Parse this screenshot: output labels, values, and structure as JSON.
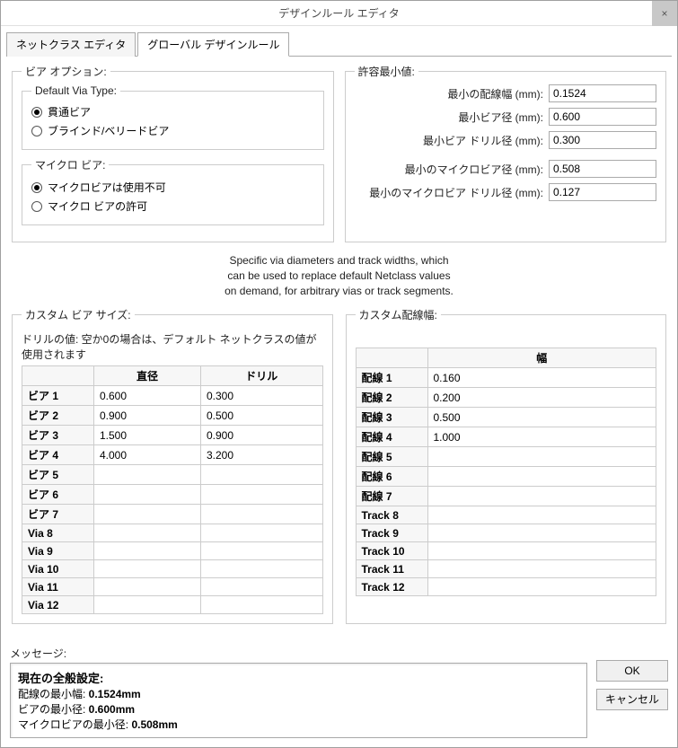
{
  "window": {
    "title": "デザインルール エディタ",
    "close": "×"
  },
  "tabs": {
    "t1": "ネットクラス エディタ",
    "t2": "グローバル デザインルール"
  },
  "viaOpt": {
    "legend": "ビア オプション:",
    "defaultType": {
      "legend": "Default Via Type:",
      "r1": "貫通ビア",
      "r2": "ブラインド/ベリードビア"
    },
    "micro": {
      "legend": "マイクロ ビア:",
      "r1": "マイクロビアは使用不可",
      "r2": "マイクロ ビアの許可"
    }
  },
  "minVals": {
    "legend": "許容最小値:",
    "rows": [
      {
        "label": "最小の配線幅 (mm):",
        "val": "0.1524"
      },
      {
        "label": "最小ビア径 (mm):",
        "val": "0.600"
      },
      {
        "label": "最小ビア ドリル径 (mm):",
        "val": "0.300"
      },
      {
        "label": "最小のマイクロビア径 (mm):",
        "val": "0.508"
      },
      {
        "label": "最小のマイクロビア ドリル径 (mm):",
        "val": "0.127"
      }
    ]
  },
  "info": {
    "l1": "Specific via diameters and track widths, which",
    "l2": "can be used to replace default Netclass values",
    "l3": "on demand, for arbitrary vias or track segments."
  },
  "viaTable": {
    "legend": "カスタム ビア サイズ:",
    "hint": "ドリルの値: 空か0の場合は、デフォルト ネットクラスの値が使用されます",
    "col1": "直径",
    "col2": "ドリル",
    "rows": [
      {
        "h": "ビア 1",
        "d": "0.600",
        "r": "0.300"
      },
      {
        "h": "ビア 2",
        "d": "0.900",
        "r": "0.500"
      },
      {
        "h": "ビア 3",
        "d": "1.500",
        "r": "0.900"
      },
      {
        "h": "ビア 4",
        "d": "4.000",
        "r": "3.200"
      },
      {
        "h": "ビア 5",
        "d": "",
        "r": ""
      },
      {
        "h": "ビア 6",
        "d": "",
        "r": ""
      },
      {
        "h": "ビア 7",
        "d": "",
        "r": ""
      },
      {
        "h": "Via 8",
        "d": "",
        "r": ""
      },
      {
        "h": "Via 9",
        "d": "",
        "r": ""
      },
      {
        "h": "Via 10",
        "d": "",
        "r": ""
      },
      {
        "h": "Via 11",
        "d": "",
        "r": ""
      },
      {
        "h": "Via 12",
        "d": "",
        "r": ""
      }
    ]
  },
  "trackTable": {
    "legend": "カスタム配線幅:",
    "col1": "幅",
    "rows": [
      {
        "h": "配線 1",
        "w": "0.160"
      },
      {
        "h": "配線 2",
        "w": "0.200"
      },
      {
        "h": "配線 3",
        "w": "0.500"
      },
      {
        "h": "配線 4",
        "w": "1.000"
      },
      {
        "h": "配線 5",
        "w": ""
      },
      {
        "h": "配線 6",
        "w": ""
      },
      {
        "h": "配線 7",
        "w": ""
      },
      {
        "h": "Track 8",
        "w": ""
      },
      {
        "h": "Track 9",
        "w": ""
      },
      {
        "h": "Track 10",
        "w": ""
      },
      {
        "h": "Track 11",
        "w": ""
      },
      {
        "h": "Track 12",
        "w": ""
      }
    ]
  },
  "messages": {
    "label": "メッセージ:",
    "h": "現在の全般設定:",
    "l1a": "配線の最小幅: ",
    "l1b": "0.1524mm",
    "l2a": "ビアの最小径: ",
    "l2b": "0.600mm",
    "l3a": "マイクロビアの最小径: ",
    "l3b": "0.508mm"
  },
  "buttons": {
    "ok": "OK",
    "cancel": "キャンセル"
  }
}
